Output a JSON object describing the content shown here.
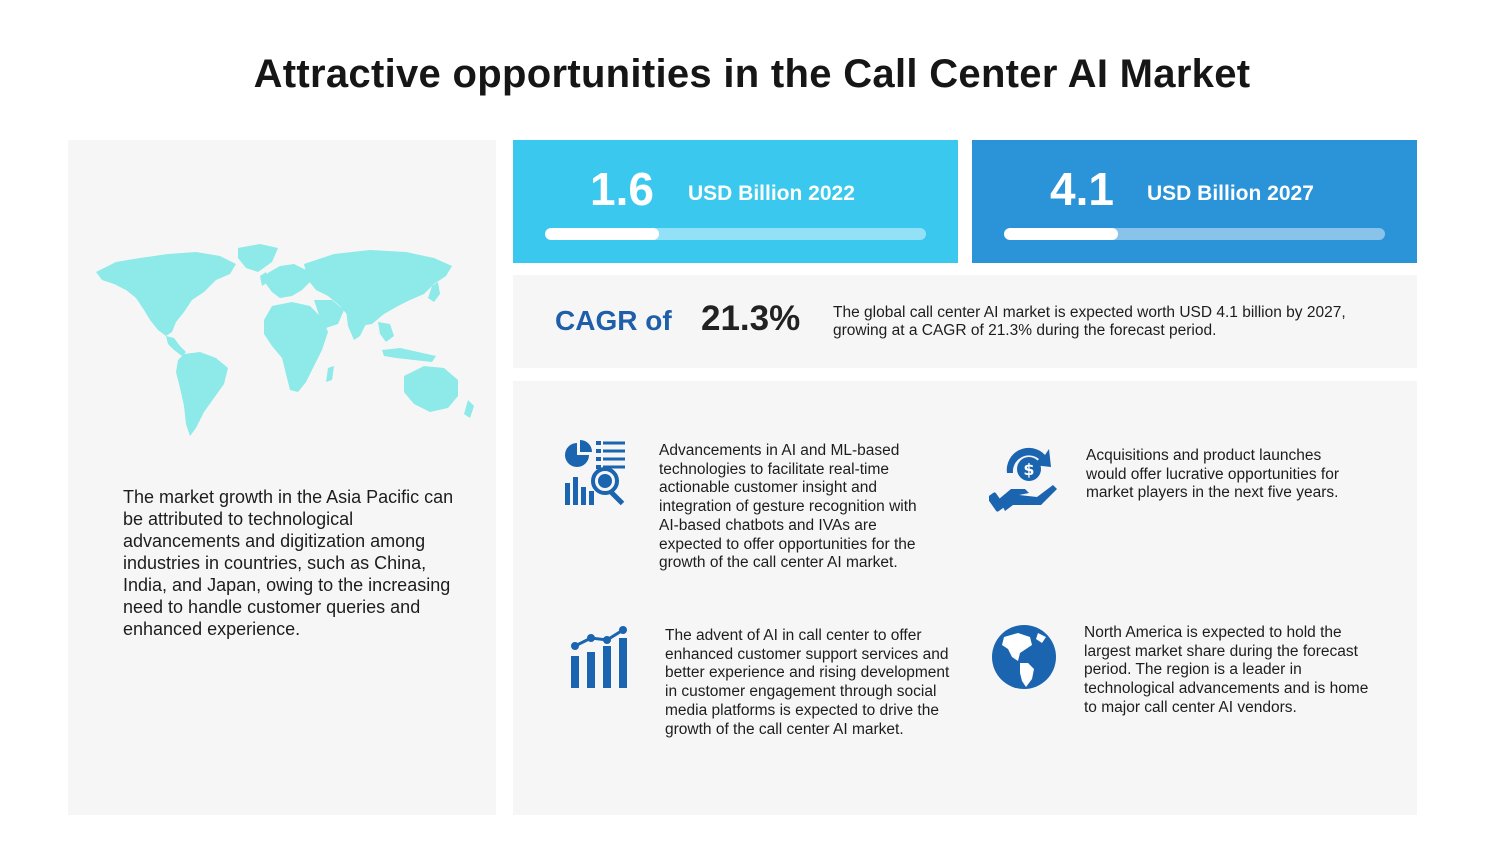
{
  "title": "Attractive opportunities in the Call Center AI Market",
  "left_panel": {
    "map_icon": "world-map",
    "text": "The market growth in the Asia Pacific can be attributed to technological advancements and digitization among industries in countries, such as China, India, and Japan, owing to the increasing need to handle customer queries and enhanced experience."
  },
  "stats": [
    {
      "value": "1.6",
      "unit": "USD Billion 2022",
      "progress": 0.3,
      "color": "#3bc8ee"
    },
    {
      "value": "4.1",
      "unit": "USD Billion 2027",
      "progress": 0.3,
      "color": "#2b93d8"
    }
  ],
  "cagr": {
    "label": "CAGR of",
    "value": "21.3%",
    "description": "The global call center AI market is expected worth USD 4.1 billion by 2027, growing at a CAGR of 21.3% during the forecast period."
  },
  "opportunities": [
    {
      "icon": "analytics-report-icon",
      "text": "Advancements in AI and ML-based technologies to facilitate real-time actionable customer insight and integration of gesture recognition with AI-based chatbots and IVAs are expected to offer opportunities for the growth of the call center AI market."
    },
    {
      "icon": "hand-dollar-cycle-icon",
      "text": "Acquisitions and product launches would offer lucrative opportunities for market players in the next five years."
    },
    {
      "icon": "growth-bar-chart-icon",
      "text": "The advent of AI in call center to offer enhanced customer support services and better experience and rising development in customer engagement through social media platforms is expected to drive the growth of the call center AI market."
    },
    {
      "icon": "globe-americas-icon",
      "text": "North America is expected to hold the largest market share during the forecast period. The region is a leader in technological advancements and is home to major call center AI vendors."
    }
  ],
  "colors": {
    "map": "#8deae8",
    "accent_dark": "#1f5ea8",
    "icon_blue": "#1a64b0"
  }
}
